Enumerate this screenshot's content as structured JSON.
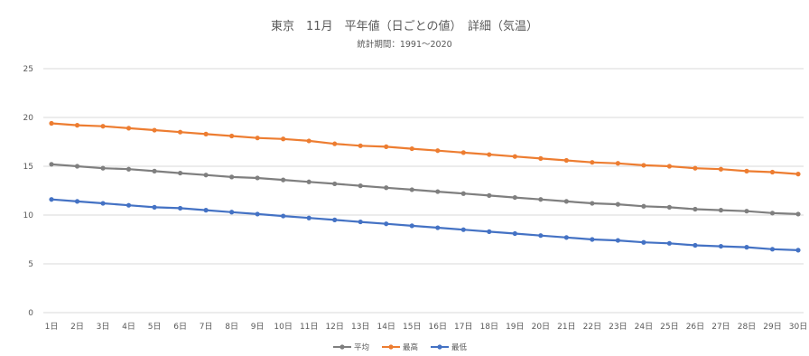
{
  "chart_data": {
    "type": "line",
    "title": "東京　11月　平年値（日ごとの値）　詳細（気温）",
    "subtitle": "統計期間：1991～2020",
    "xlabel": "",
    "ylabel": "",
    "categories": [
      "1日",
      "2日",
      "3日",
      "4日",
      "5日",
      "6日",
      "7日",
      "8日",
      "9日",
      "10日",
      "11日",
      "12日",
      "13日",
      "14日",
      "15日",
      "16日",
      "17日",
      "18日",
      "19日",
      "20日",
      "21日",
      "22日",
      "23日",
      "24日",
      "25日",
      "26日",
      "27日",
      "28日",
      "29日",
      "30日"
    ],
    "ylim": [
      0,
      25
    ],
    "yticks": [
      "0",
      "5",
      "10",
      "15",
      "20",
      "25"
    ],
    "grid": true,
    "legend_position": "bottom",
    "series": [
      {
        "name": "平均",
        "color": "#7f7f7f",
        "values": [
          15.2,
          15.0,
          14.8,
          14.7,
          14.5,
          14.3,
          14.1,
          13.9,
          13.8,
          13.6,
          13.4,
          13.2,
          13.0,
          12.8,
          12.6,
          12.4,
          12.2,
          12.0,
          11.8,
          11.6,
          11.4,
          11.2,
          11.1,
          10.9,
          10.8,
          10.6,
          10.5,
          10.4,
          10.2,
          10.1
        ]
      },
      {
        "name": "最高",
        "color": "#ed7d31",
        "values": [
          19.4,
          19.2,
          19.1,
          18.9,
          18.7,
          18.5,
          18.3,
          18.1,
          17.9,
          17.8,
          17.6,
          17.3,
          17.1,
          17.0,
          16.8,
          16.6,
          16.4,
          16.2,
          16.0,
          15.8,
          15.6,
          15.4,
          15.3,
          15.1,
          15.0,
          14.8,
          14.7,
          14.5,
          14.4,
          14.2
        ]
      },
      {
        "name": "最低",
        "color": "#4472c4",
        "values": [
          11.6,
          11.4,
          11.2,
          11.0,
          10.8,
          10.7,
          10.5,
          10.3,
          10.1,
          9.9,
          9.7,
          9.5,
          9.3,
          9.1,
          8.9,
          8.7,
          8.5,
          8.3,
          8.1,
          7.9,
          7.7,
          7.5,
          7.4,
          7.2,
          7.1,
          6.9,
          6.8,
          6.7,
          6.5,
          6.4
        ]
      }
    ]
  }
}
